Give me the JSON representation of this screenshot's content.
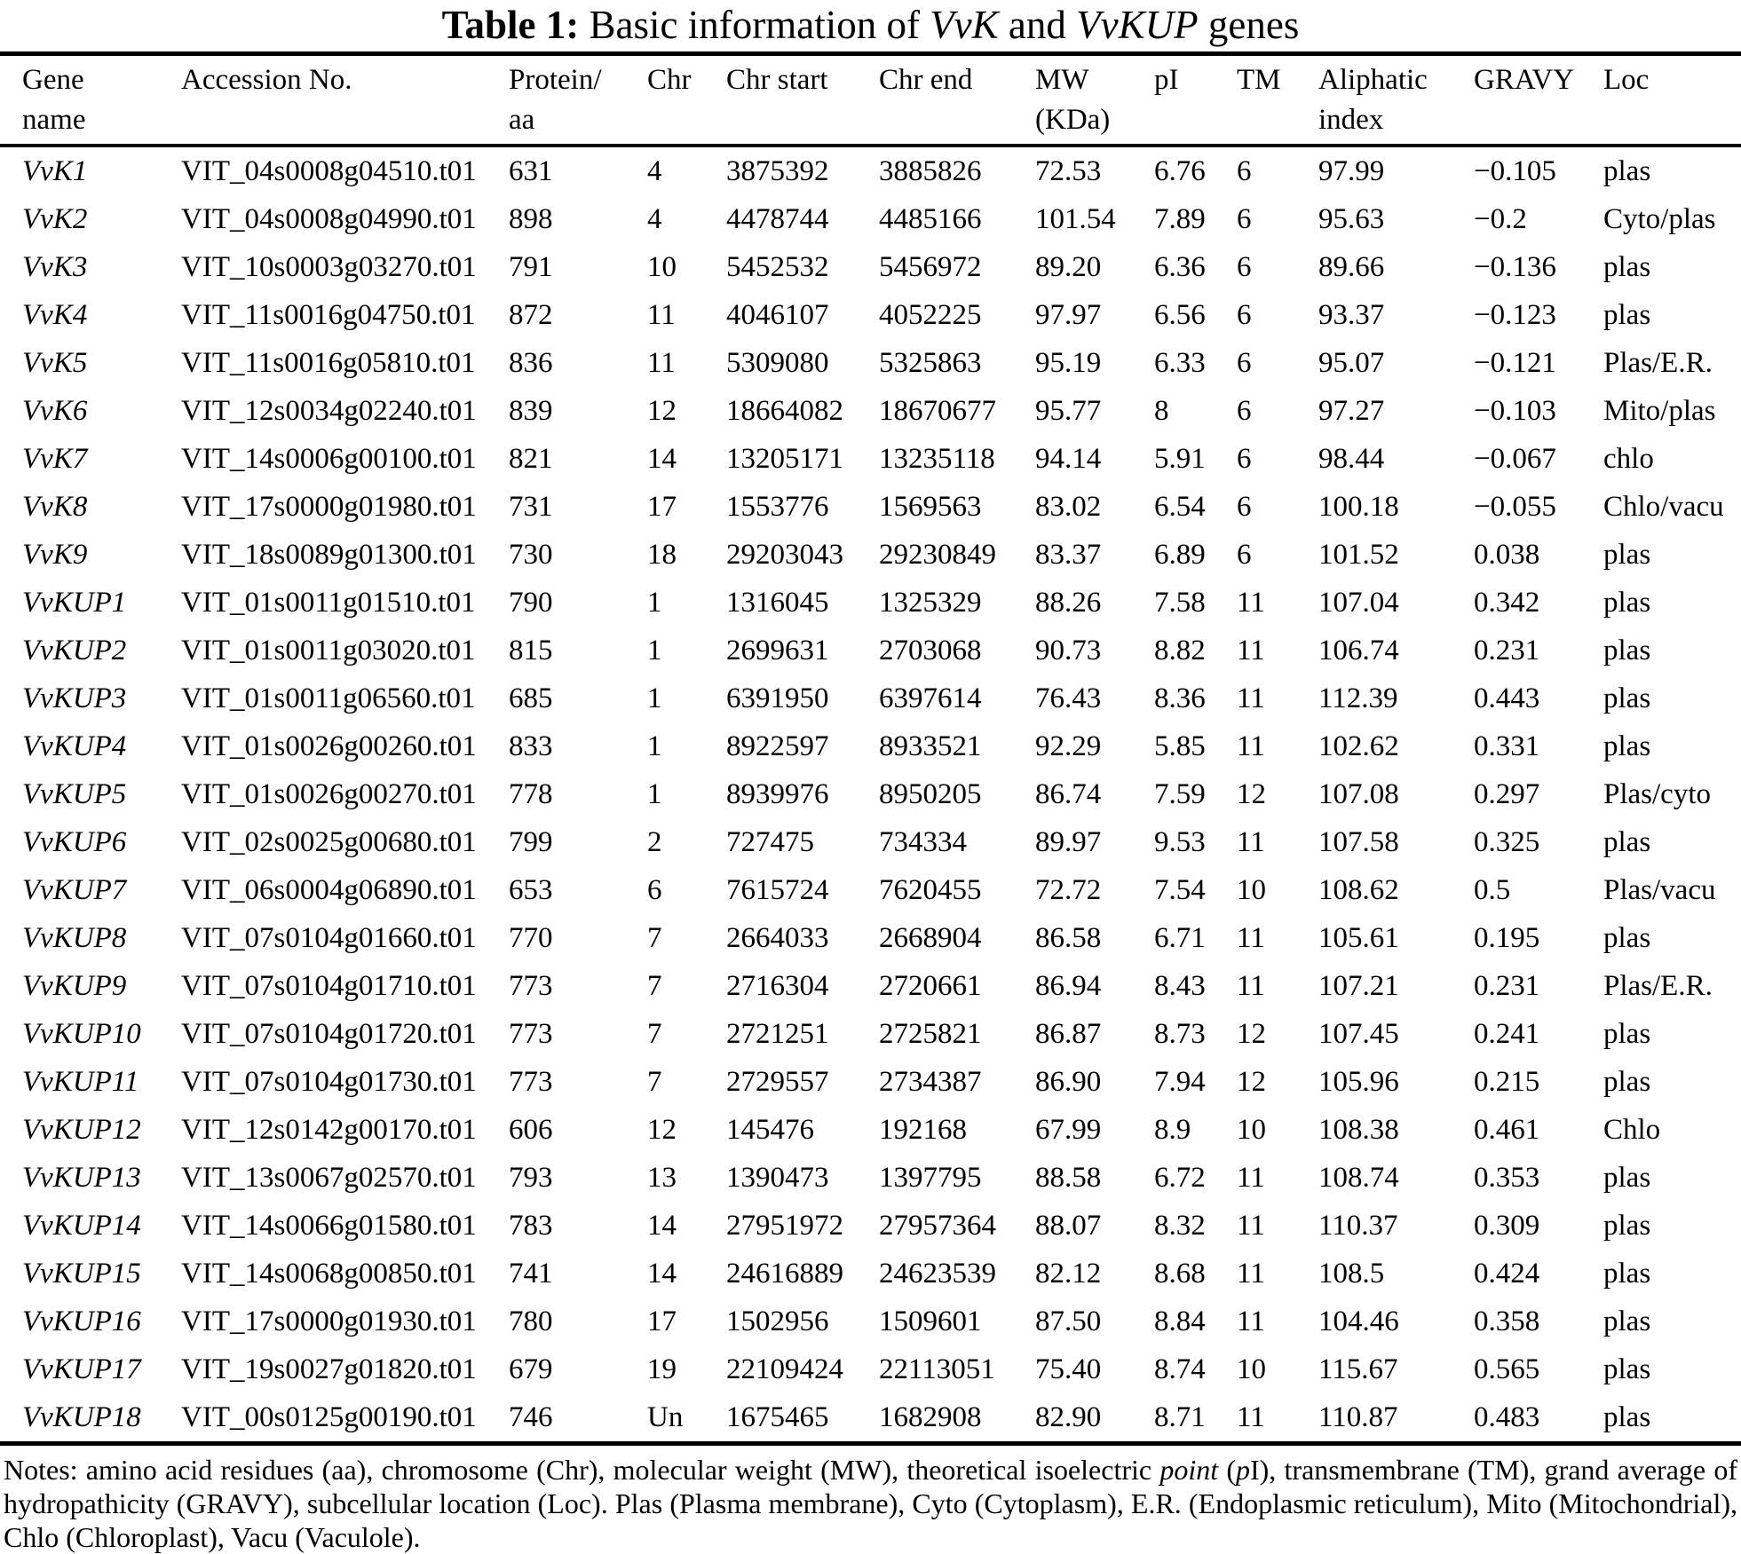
{
  "title": {
    "label": "Table 1:",
    "seg1": " Basic information of ",
    "gene_family_1": "VvK",
    "seg2": " and ",
    "gene_family_2": "VvKUP",
    "seg3": " genes"
  },
  "table": {
    "headers": [
      "Gene\nname",
      "Accession No.",
      "Protein/\naa",
      "Chr",
      "Chr start",
      "Chr end",
      "MW\n(KDa)",
      "pI",
      "TM",
      "Aliphatic\nindex",
      "GRAVY",
      "Loc"
    ],
    "rows": [
      [
        "VvK1",
        "VIT_04s0008g04510.t01",
        "631",
        "4",
        "3875392",
        "3885826",
        "72.53",
        "6.76",
        "6",
        "97.99",
        "−0.105",
        "plas"
      ],
      [
        "VvK2",
        "VIT_04s0008g04990.t01",
        "898",
        "4",
        "4478744",
        "4485166",
        "101.54",
        "7.89",
        "6",
        "95.63",
        "−0.2",
        "Cyto/plas"
      ],
      [
        "VvK3",
        "VIT_10s0003g03270.t01",
        "791",
        "10",
        "5452532",
        "5456972",
        "89.20",
        "6.36",
        "6",
        "89.66",
        "−0.136",
        "plas"
      ],
      [
        "VvK4",
        "VIT_11s0016g04750.t01",
        "872",
        "11",
        "4046107",
        "4052225",
        "97.97",
        "6.56",
        "6",
        "93.37",
        "−0.123",
        "plas"
      ],
      [
        "VvK5",
        "VIT_11s0016g05810.t01",
        "836",
        "11",
        "5309080",
        "5325863",
        "95.19",
        "6.33",
        "6",
        "95.07",
        "−0.121",
        "Plas/E.R."
      ],
      [
        "VvK6",
        "VIT_12s0034g02240.t01",
        "839",
        "12",
        "18664082",
        "18670677",
        "95.77",
        "8",
        "6",
        "97.27",
        "−0.103",
        "Mito/plas"
      ],
      [
        "VvK7",
        "VIT_14s0006g00100.t01",
        "821",
        "14",
        "13205171",
        "13235118",
        "94.14",
        "5.91",
        "6",
        "98.44",
        "−0.067",
        "chlo"
      ],
      [
        "VvK8",
        "VIT_17s0000g01980.t01",
        "731",
        "17",
        "1553776",
        "1569563",
        "83.02",
        "6.54",
        "6",
        "100.18",
        "−0.055",
        "Chlo/vacu"
      ],
      [
        "VvK9",
        "VIT_18s0089g01300.t01",
        "730",
        "18",
        "29203043",
        "29230849",
        "83.37",
        "6.89",
        "6",
        "101.52",
        "0.038",
        "plas"
      ],
      [
        "VvKUP1",
        "VIT_01s0011g01510.t01",
        "790",
        "1",
        "1316045",
        "1325329",
        "88.26",
        "7.58",
        "11",
        "107.04",
        "0.342",
        "plas"
      ],
      [
        "VvKUP2",
        "VIT_01s0011g03020.t01",
        "815",
        "1",
        "2699631",
        "2703068",
        "90.73",
        "8.82",
        "11",
        "106.74",
        "0.231",
        "plas"
      ],
      [
        "VvKUP3",
        "VIT_01s0011g06560.t01",
        "685",
        "1",
        "6391950",
        "6397614",
        "76.43",
        "8.36",
        "11",
        "112.39",
        "0.443",
        "plas"
      ],
      [
        "VvKUP4",
        "VIT_01s0026g00260.t01",
        "833",
        "1",
        "8922597",
        "8933521",
        "92.29",
        "5.85",
        "11",
        "102.62",
        "0.331",
        "plas"
      ],
      [
        "VvKUP5",
        "VIT_01s0026g00270.t01",
        "778",
        "1",
        "8939976",
        "8950205",
        "86.74",
        "7.59",
        "12",
        "107.08",
        "0.297",
        "Plas/cyto"
      ],
      [
        "VvKUP6",
        "VIT_02s0025g00680.t01",
        "799",
        "2",
        "727475",
        "734334",
        "89.97",
        "9.53",
        "11",
        "107.58",
        "0.325",
        "plas"
      ],
      [
        "VvKUP7",
        "VIT_06s0004g06890.t01",
        "653",
        "6",
        "7615724",
        "7620455",
        "72.72",
        "7.54",
        "10",
        "108.62",
        "0.5",
        "Plas/vacu"
      ],
      [
        "VvKUP8",
        "VIT_07s0104g01660.t01",
        "770",
        "7",
        "2664033",
        "2668904",
        "86.58",
        "6.71",
        "11",
        "105.61",
        "0.195",
        "plas"
      ],
      [
        "VvKUP9",
        "VIT_07s0104g01710.t01",
        "773",
        "7",
        "2716304",
        "2720661",
        "86.94",
        "8.43",
        "11",
        "107.21",
        "0.231",
        "Plas/E.R."
      ],
      [
        "VvKUP10",
        "VIT_07s0104g01720.t01",
        "773",
        "7",
        "2721251",
        "2725821",
        "86.87",
        "8.73",
        "12",
        "107.45",
        "0.241",
        "plas"
      ],
      [
        "VvKUP11",
        "VIT_07s0104g01730.t01",
        "773",
        "7",
        "2729557",
        "2734387",
        "86.90",
        "7.94",
        "12",
        "105.96",
        "0.215",
        "plas"
      ],
      [
        "VvKUP12",
        "VIT_12s0142g00170.t01",
        "606",
        "12",
        "145476",
        "192168",
        "67.99",
        "8.9",
        "10",
        "108.38",
        "0.461",
        "Chlo"
      ],
      [
        "VvKUP13",
        "VIT_13s0067g02570.t01",
        "793",
        "13",
        "1390473",
        "1397795",
        "88.58",
        "6.72",
        "11",
        "108.74",
        "0.353",
        "plas"
      ],
      [
        "VvKUP14",
        "VIT_14s0066g01580.t01",
        "783",
        "14",
        "27951972",
        "27957364",
        "88.07",
        "8.32",
        "11",
        "110.37",
        "0.309",
        "plas"
      ],
      [
        "VvKUP15",
        "VIT_14s0068g00850.t01",
        "741",
        "14",
        "24616889",
        "24623539",
        "82.12",
        "8.68",
        "11",
        "108.5",
        "0.424",
        "plas"
      ],
      [
        "VvKUP16",
        "VIT_17s0000g01930.t01",
        "780",
        "17",
        "1502956",
        "1509601",
        "87.50",
        "8.84",
        "11",
        "104.46",
        "0.358",
        "plas"
      ],
      [
        "VvKUP17",
        "VIT_19s0027g01820.t01",
        "679",
        "19",
        "22109424",
        "22113051",
        "75.40",
        "8.74",
        "10",
        "115.67",
        "0.565",
        "plas"
      ],
      [
        "VvKUP18",
        "VIT_00s0125g00190.t01",
        "746",
        "Un",
        "1675465",
        "1682908",
        "82.90",
        "8.71",
        "11",
        "110.87",
        "0.483",
        "plas"
      ]
    ]
  },
  "notes": {
    "seg1": "Notes: amino acid residues (aa), chromosome (Chr), molecular weight (MW), theoretical isoelectric ",
    "italic1": "point",
    "seg2": " (",
    "italic2": "p",
    "seg3": "I), transmembrane (TM), grand average of hydropathicity (GRAVY), subcellular location (Loc). Plas (Plasma membrane), Cyto (Cytoplasm), E.R. (Endoplasmic reticulum), Mito (Mitochondrial), Chlo (Chloroplast), Vacu (Vaculole)."
  }
}
